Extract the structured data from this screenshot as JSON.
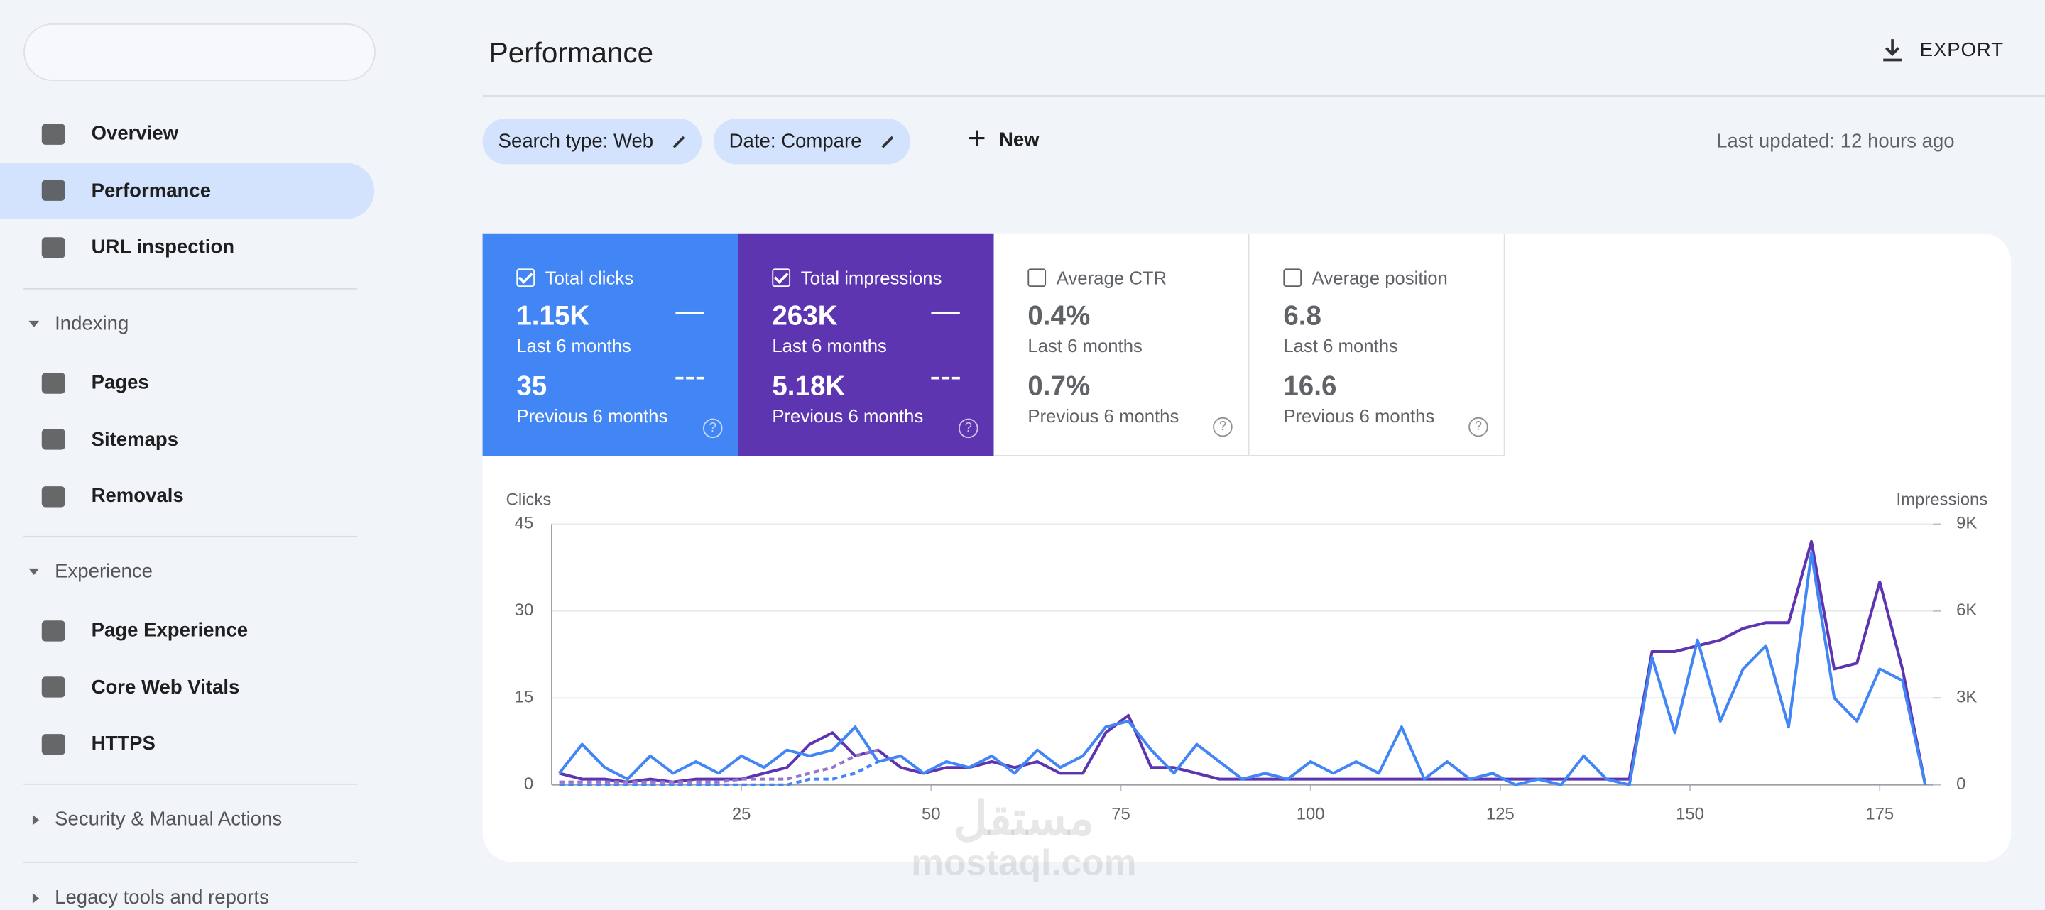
{
  "sidebar": {
    "items": [
      {
        "label": "Overview",
        "active": false
      },
      {
        "label": "Performance",
        "active": true
      },
      {
        "label": "URL inspection",
        "active": false
      }
    ],
    "sections": [
      {
        "title": "Indexing",
        "items": [
          "Pages",
          "Sitemaps",
          "Removals"
        ]
      },
      {
        "title": "Experience",
        "items": [
          "Page Experience",
          "Core Web Vitals",
          "HTTPS"
        ]
      }
    ],
    "collapsed": [
      "Security & Manual Actions",
      "Legacy tools and reports"
    ]
  },
  "header": {
    "title": "Performance",
    "export": "EXPORT"
  },
  "filters": {
    "chips": [
      "Search type: Web",
      "Date: Compare"
    ],
    "new": "New",
    "last_updated": "Last updated: 12 hours ago"
  },
  "metrics": [
    {
      "label": "Total clicks",
      "checked": true,
      "color": "#4285f4",
      "value": "1.15K",
      "period": "Last 6 months",
      "prev_value": "35",
      "prev_period": "Previous 6 months"
    },
    {
      "label": "Total impressions",
      "checked": true,
      "color": "#5e35b1",
      "value": "263K",
      "period": "Last 6 months",
      "prev_value": "5.18K",
      "prev_period": "Previous 6 months"
    },
    {
      "label": "Average CTR",
      "checked": false,
      "color": "#ffffff",
      "value": "0.4%",
      "period": "Last 6 months",
      "prev_value": "0.7%",
      "prev_period": "Previous 6 months"
    },
    {
      "label": "Average position",
      "checked": false,
      "color": "#ffffff",
      "value": "6.8",
      "period": "Last 6 months",
      "prev_value": "16.6",
      "prev_period": "Previous 6 months"
    }
  ],
  "chart_data": {
    "type": "line",
    "ylabel": "Clicks",
    "y2label": "Impressions",
    "xlim": [
      0,
      182
    ],
    "xticks": [
      25,
      50,
      75,
      100,
      125,
      150,
      175
    ],
    "ylim": [
      0,
      45
    ],
    "yticks": [
      0,
      15,
      30,
      45
    ],
    "y2lim": [
      0,
      9000
    ],
    "y2ticks": [
      {
        "value": 0,
        "label": "0"
      },
      {
        "value": 3000,
        "label": "3K"
      },
      {
        "value": 6000,
        "label": "6K"
      },
      {
        "value": 9000,
        "label": "9K"
      }
    ],
    "grid": true,
    "x": [
      1,
      4,
      7,
      10,
      13,
      16,
      19,
      22,
      25,
      28,
      31,
      34,
      37,
      40,
      43,
      46,
      49,
      52,
      55,
      58,
      61,
      64,
      67,
      70,
      73,
      76,
      79,
      82,
      85,
      88,
      91,
      94,
      97,
      100,
      103,
      106,
      109,
      112,
      115,
      118,
      121,
      124,
      127,
      130,
      133,
      136,
      139,
      142,
      145,
      148,
      151,
      154,
      157,
      160,
      163,
      166,
      169,
      172,
      175,
      178,
      181
    ],
    "series": [
      {
        "name": "Total impressions",
        "color": "#5e35b1",
        "axis": "y2",
        "dashed": false,
        "values": [
          400,
          200,
          200,
          100,
          200,
          100,
          200,
          200,
          200,
          400,
          600,
          1400,
          1800,
          1000,
          1200,
          600,
          400,
          600,
          600,
          800,
          600,
          800,
          400,
          400,
          1800,
          2400,
          600,
          600,
          400,
          200,
          200,
          200,
          200,
          200,
          200,
          200,
          200,
          200,
          200,
          200,
          200,
          200,
          200,
          200,
          200,
          200,
          200,
          200,
          4600,
          4600,
          4800,
          5000,
          5400,
          5600,
          5600,
          8400,
          4000,
          4200,
          7000,
          4000,
          0
        ]
      },
      {
        "name": "Total clicks",
        "color": "#4285f4",
        "axis": "y",
        "dashed": false,
        "values": [
          2,
          7,
          3,
          1,
          5,
          2,
          4,
          2,
          5,
          3,
          6,
          5,
          6,
          10,
          4,
          5,
          2,
          4,
          3,
          5,
          2,
          6,
          3,
          5,
          10,
          11,
          6,
          2,
          7,
          4,
          1,
          2,
          1,
          4,
          2,
          4,
          2,
          10,
          1,
          4,
          1,
          2,
          0,
          1,
          0,
          5,
          1,
          0,
          22,
          9,
          25,
          11,
          20,
          24,
          10,
          40,
          15,
          11,
          20,
          18,
          0
        ]
      },
      {
        "name": "Total impressions (previous)",
        "color": "#9575cd",
        "axis": "y2",
        "dashed": true,
        "values": [
          100,
          100,
          100,
          100,
          100,
          100,
          100,
          100,
          200,
          200,
          200,
          400,
          600,
          1000,
          1200,
          null,
          null,
          null,
          null,
          null,
          null,
          null,
          null,
          null,
          null,
          null,
          null,
          null,
          null,
          null,
          null,
          null,
          null,
          null,
          null,
          null,
          null,
          null,
          null,
          null,
          null,
          null,
          null,
          null,
          null,
          null,
          null,
          null,
          null,
          null,
          null,
          null,
          null,
          null,
          null,
          null,
          null,
          null,
          null,
          null,
          null
        ]
      },
      {
        "name": "Total clicks (previous)",
        "color": "#4285f4",
        "axis": "y",
        "dashed": true,
        "values": [
          0,
          0,
          0,
          0,
          0,
          0,
          0,
          0,
          0,
          0,
          0,
          1,
          1,
          2,
          4,
          null,
          null,
          null,
          null,
          null,
          null,
          null,
          null,
          null,
          null,
          null,
          null,
          null,
          null,
          null,
          null,
          null,
          null,
          null,
          null,
          null,
          null,
          null,
          null,
          null,
          null,
          null,
          null,
          null,
          null,
          null,
          null,
          null,
          null,
          null,
          null,
          null,
          null,
          null,
          null,
          null,
          null,
          null,
          null,
          null,
          null
        ]
      }
    ]
  },
  "watermark": {
    "arabic": "مستقل",
    "latin": "mostaql.com"
  }
}
